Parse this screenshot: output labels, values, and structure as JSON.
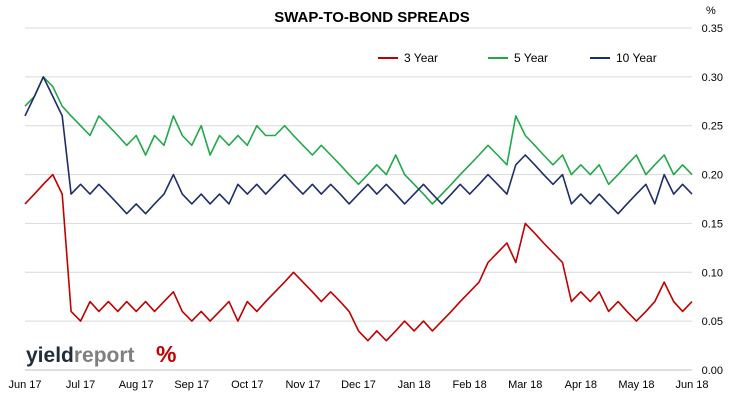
{
  "chart_data": {
    "type": "line",
    "title": "SWAP-TO-BOND SPREADS",
    "unit_label": "%",
    "x_tick_labels": [
      "Jun 17",
      "Jul 17",
      "Aug 17",
      "Sep 17",
      "Oct 17",
      "Nov 17",
      "Dec 17",
      "Jan 18",
      "Feb 18",
      "Mar 18",
      "Apr 18",
      "May 18",
      "Jun 18"
    ],
    "y_tick_labels": [
      "0.00",
      "0.05",
      "0.10",
      "0.15",
      "0.20",
      "0.25",
      "0.30",
      "0.35"
    ],
    "ylim": [
      0,
      0.35
    ],
    "grid": true,
    "legend_position": "top-right",
    "x_month_index": [
      0,
      0.17,
      0.33,
      0.5,
      0.67,
      0.83,
      1,
      1.17,
      1.33,
      1.5,
      1.67,
      1.83,
      2,
      2.17,
      2.33,
      2.5,
      2.67,
      2.83,
      3,
      3.17,
      3.33,
      3.5,
      3.67,
      3.83,
      4,
      4.17,
      4.33,
      4.5,
      4.67,
      4.83,
      5,
      5.17,
      5.33,
      5.5,
      5.67,
      5.83,
      6,
      6.17,
      6.33,
      6.5,
      6.67,
      6.83,
      7,
      7.17,
      7.33,
      7.5,
      7.67,
      7.83,
      8,
      8.17,
      8.33,
      8.5,
      8.67,
      8.83,
      9,
      9.17,
      9.33,
      9.5,
      9.67,
      9.83,
      10,
      10.17,
      10.33,
      10.5,
      10.67,
      10.83,
      11,
      11.17,
      11.33,
      11.5,
      11.67,
      11.83,
      12
    ],
    "series": [
      {
        "name": "3 Year",
        "color": "#c00000",
        "values": [
          0.17,
          0.18,
          0.19,
          0.2,
          0.18,
          0.06,
          0.05,
          0.07,
          0.06,
          0.07,
          0.06,
          0.07,
          0.06,
          0.07,
          0.06,
          0.07,
          0.08,
          0.06,
          0.05,
          0.06,
          0.05,
          0.06,
          0.07,
          0.05,
          0.07,
          0.06,
          0.07,
          0.08,
          0.09,
          0.1,
          0.09,
          0.08,
          0.07,
          0.08,
          0.07,
          0.06,
          0.04,
          0.03,
          0.04,
          0.03,
          0.04,
          0.05,
          0.04,
          0.05,
          0.04,
          0.05,
          0.06,
          0.07,
          0.08,
          0.09,
          0.11,
          0.12,
          0.13,
          0.11,
          0.15,
          0.14,
          0.13,
          0.12,
          0.11,
          0.07,
          0.08,
          0.07,
          0.08,
          0.06,
          0.07,
          0.06,
          0.05,
          0.06,
          0.07,
          0.09,
          0.07,
          0.06,
          0.07
        ]
      },
      {
        "name": "5 Year",
        "color": "#22a84a",
        "values": [
          0.27,
          0.28,
          0.3,
          0.29,
          0.27,
          0.26,
          0.25,
          0.24,
          0.26,
          0.25,
          0.24,
          0.23,
          0.24,
          0.22,
          0.24,
          0.23,
          0.26,
          0.24,
          0.23,
          0.25,
          0.22,
          0.24,
          0.23,
          0.24,
          0.23,
          0.25,
          0.24,
          0.24,
          0.25,
          0.24,
          0.23,
          0.22,
          0.23,
          0.22,
          0.21,
          0.2,
          0.19,
          0.2,
          0.21,
          0.2,
          0.22,
          0.2,
          0.19,
          0.18,
          0.17,
          0.18,
          0.19,
          0.2,
          0.21,
          0.22,
          0.23,
          0.22,
          0.21,
          0.26,
          0.24,
          0.23,
          0.22,
          0.21,
          0.22,
          0.2,
          0.21,
          0.2,
          0.21,
          0.19,
          0.2,
          0.21,
          0.22,
          0.2,
          0.21,
          0.22,
          0.2,
          0.21,
          0.2
        ]
      },
      {
        "name": "10 Year",
        "color": "#1f2d6b",
        "values": [
          0.26,
          0.28,
          0.3,
          0.28,
          0.26,
          0.18,
          0.19,
          0.18,
          0.19,
          0.18,
          0.17,
          0.16,
          0.17,
          0.16,
          0.17,
          0.18,
          0.2,
          0.18,
          0.17,
          0.18,
          0.17,
          0.18,
          0.17,
          0.19,
          0.18,
          0.19,
          0.18,
          0.19,
          0.2,
          0.19,
          0.18,
          0.19,
          0.18,
          0.19,
          0.18,
          0.17,
          0.18,
          0.19,
          0.18,
          0.19,
          0.18,
          0.17,
          0.18,
          0.19,
          0.18,
          0.17,
          0.18,
          0.19,
          0.18,
          0.19,
          0.2,
          0.19,
          0.18,
          0.21,
          0.22,
          0.21,
          0.2,
          0.19,
          0.2,
          0.17,
          0.18,
          0.17,
          0.18,
          0.17,
          0.16,
          0.17,
          0.18,
          0.19,
          0.17,
          0.2,
          0.18,
          0.19,
          0.18
        ]
      }
    ]
  },
  "branding": {
    "logo_part1": "yield",
    "logo_part2": "report",
    "logo_symbol": "%",
    "logo_symbol_colors": [
      "#22a84a",
      "#c00000"
    ]
  }
}
